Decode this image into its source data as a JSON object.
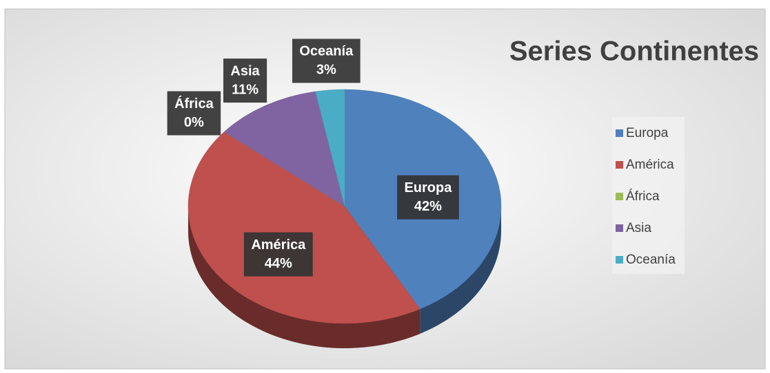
{
  "chart_data": {
    "type": "pie3d",
    "title": "Series Continentes",
    "categories": [
      "Europa",
      "América",
      "África",
      "Asia",
      "Oceanía"
    ],
    "values": [
      42,
      44,
      0,
      11,
      3
    ],
    "value_labels": [
      "42%",
      "44%",
      "0%",
      "11%",
      "3%"
    ],
    "colors": [
      "#4f81bd",
      "#c0504d",
      "#9bbb59",
      "#8064a2",
      "#4bacc6"
    ],
    "legend": "right"
  }
}
